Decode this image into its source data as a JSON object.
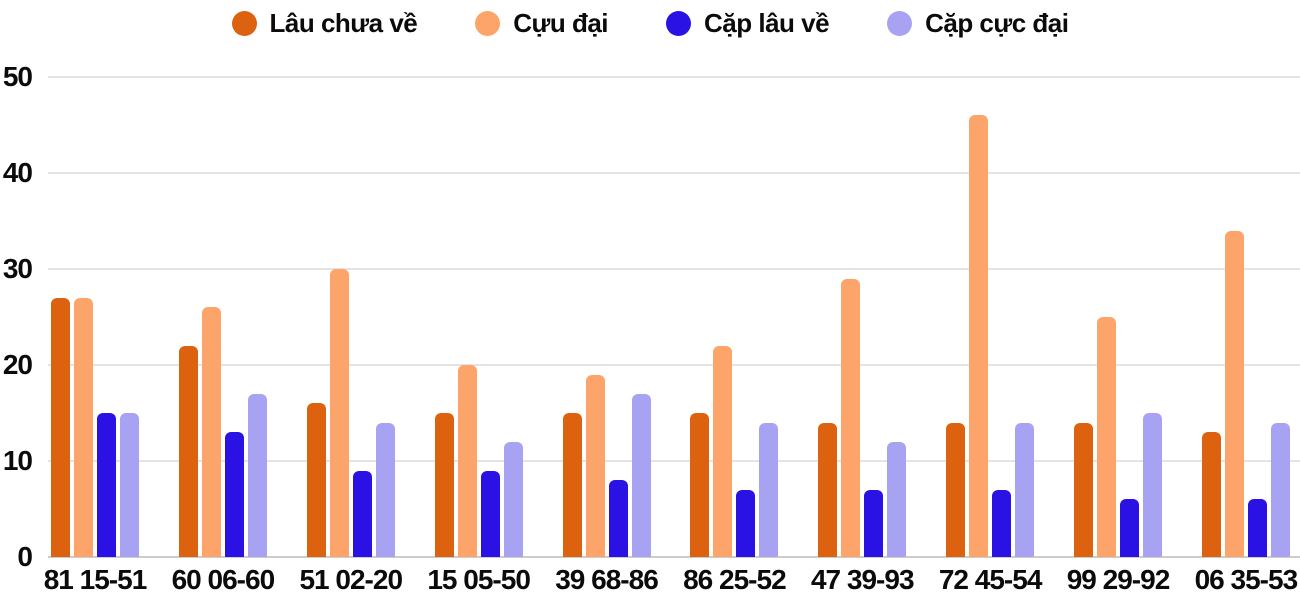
{
  "chart_data": {
    "type": "bar",
    "title": "",
    "xlabel": "",
    "ylabel": "",
    "categories": [
      "81 15-51",
      "60 06-60",
      "51 02-20",
      "15 05-50",
      "39 68-86",
      "86 25-52",
      "47 39-93",
      "72 45-54",
      "99 29-92",
      "06 35-53"
    ],
    "series": [
      {
        "name": "Lâu chưa về",
        "color": "#dc620f",
        "values": [
          27,
          22,
          16,
          15,
          15,
          15,
          14,
          14,
          14,
          13
        ]
      },
      {
        "name": "Cựu đại",
        "color": "#fca469",
        "values": [
          27,
          26,
          30,
          20,
          19,
          22,
          29,
          46,
          25,
          34
        ]
      },
      {
        "name": "Cặp lâu về",
        "color": "#2912e3",
        "values": [
          15,
          13,
          9,
          9,
          8,
          7,
          7,
          7,
          6,
          6
        ]
      },
      {
        "name": "Cặp cực đại",
        "color": "#a8a2f2",
        "values": [
          15,
          17,
          14,
          12,
          17,
          14,
          12,
          14,
          15,
          14
        ]
      }
    ],
    "yticks": [
      0,
      10,
      20,
      30,
      40,
      50
    ],
    "ylim": [
      0,
      50
    ],
    "grid": true,
    "legend_position": "top-center"
  },
  "colors": {
    "background": "#ffffff",
    "gridline": "#e4e4e4",
    "baseline": "#cccccc",
    "text": "#0b0b0b"
  }
}
